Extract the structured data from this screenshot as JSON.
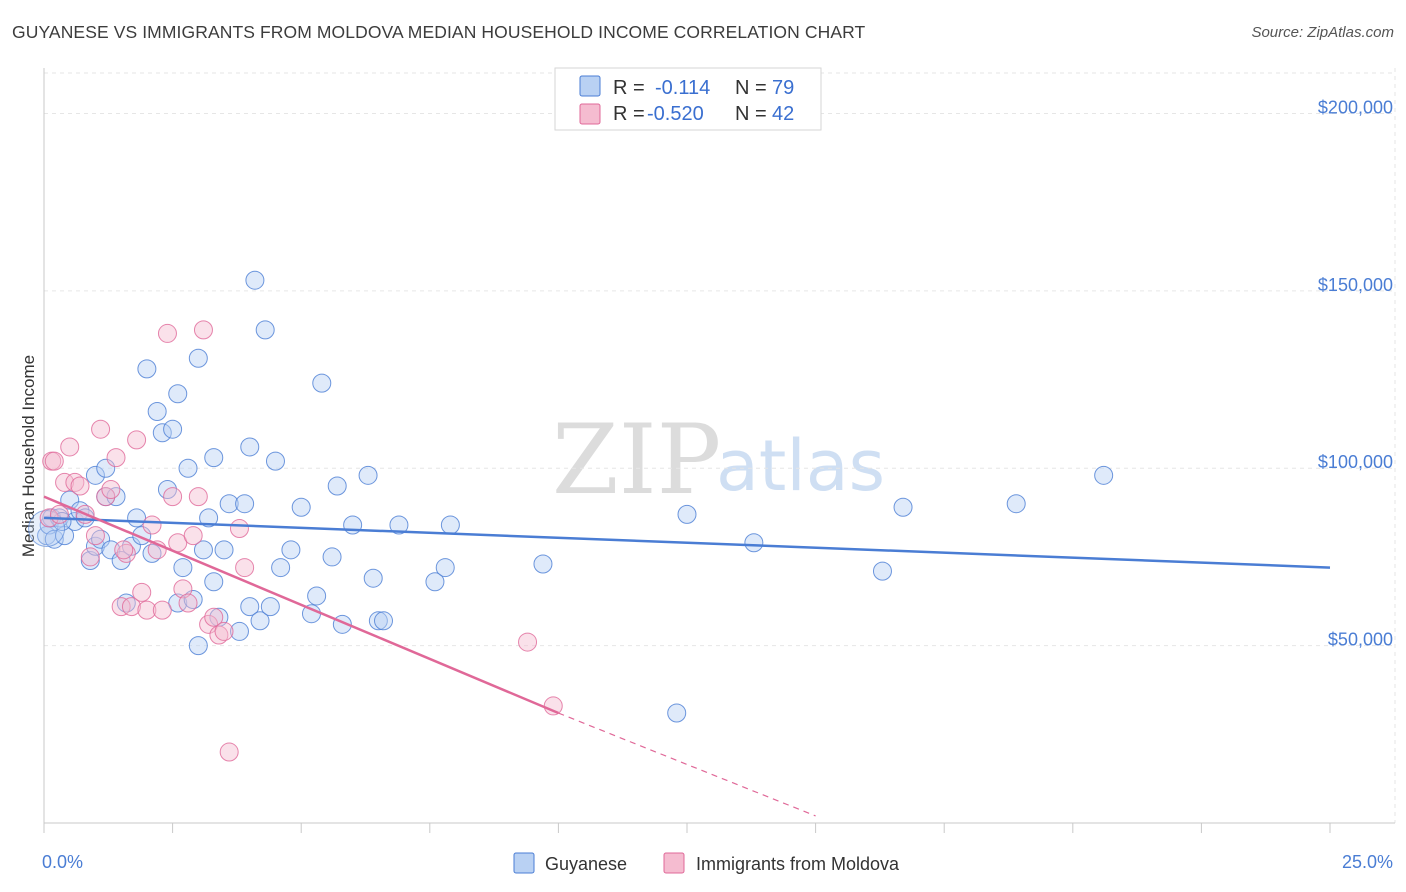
{
  "title": "GUYANESE VS IMMIGRANTS FROM MOLDOVA MEDIAN HOUSEHOLD INCOME CORRELATION CHART",
  "source": "Source: ZipAtlas.com",
  "watermark": {
    "zip": "ZIP",
    "atlas": "atlas"
  },
  "colors": {
    "blue": "#4a7dd4",
    "blue_fill": "#b9d1f3",
    "pink": "#e06898",
    "pink_fill": "#f5bcd0"
  },
  "legend": {
    "rows": [
      {
        "r_label": "R =",
        "r_value": "-0.114",
        "n_label": "N =",
        "n_value": "79"
      },
      {
        "r_label": "R =",
        "r_value": "-0.520",
        "n_label": "N =",
        "n_value": "42"
      }
    ]
  },
  "bottom_legend": {
    "series1": "Guyanese",
    "series2": "Immigrants from Moldova"
  },
  "chart_data": {
    "type": "scatter",
    "title": "GUYANESE VS IMMIGRANTS FROM MOLDOVA MEDIAN HOUSEHOLD INCOME CORRELATION CHART",
    "xlabel": "",
    "ylabel": "Median Household Income",
    "xlim": [
      0,
      25
    ],
    "ylim": [
      0,
      210000
    ],
    "x_tick_labels": [
      "0.0%",
      "25.0%"
    ],
    "y_ticks": [
      {
        "value": 50000,
        "label": "$50,000"
      },
      {
        "value": 100000,
        "label": "$100,000"
      },
      {
        "value": 150000,
        "label": "$150,000"
      },
      {
        "value": 200000,
        "label": "$200,000"
      }
    ],
    "series": [
      {
        "name": "Guyanese",
        "r": -0.114,
        "n": 79,
        "trend": {
          "x0": 0,
          "y0": 86000,
          "x1": 25,
          "y1": 72000
        },
        "points": [
          [
            0.05,
            81000
          ],
          [
            0.1,
            84000
          ],
          [
            0.15,
            86000
          ],
          [
            0.2,
            80000
          ],
          [
            0.3,
            86000
          ],
          [
            0.4,
            81000
          ],
          [
            0.5,
            91000
          ],
          [
            0.6,
            85000
          ],
          [
            0.7,
            88000
          ],
          [
            0.8,
            86000
          ],
          [
            0.9,
            74000
          ],
          [
            1.0,
            78000
          ],
          [
            1.0,
            98000
          ],
          [
            1.1,
            80000
          ],
          [
            1.2,
            92000
          ],
          [
            1.2,
            100000
          ],
          [
            1.3,
            77000
          ],
          [
            1.4,
            92000
          ],
          [
            1.5,
            74000
          ],
          [
            1.6,
            62000
          ],
          [
            1.7,
            78000
          ],
          [
            1.8,
            86000
          ],
          [
            1.9,
            81000
          ],
          [
            2.0,
            128000
          ],
          [
            2.1,
            76000
          ],
          [
            2.2,
            116000
          ],
          [
            2.3,
            110000
          ],
          [
            2.4,
            94000
          ],
          [
            2.5,
            111000
          ],
          [
            2.6,
            121000
          ],
          [
            2.6,
            62000
          ],
          [
            2.7,
            72000
          ],
          [
            2.8,
            100000
          ],
          [
            2.9,
            63000
          ],
          [
            3.0,
            50000
          ],
          [
            3.0,
            131000
          ],
          [
            3.1,
            77000
          ],
          [
            3.2,
            86000
          ],
          [
            3.3,
            103000
          ],
          [
            3.3,
            68000
          ],
          [
            3.4,
            58000
          ],
          [
            3.5,
            77000
          ],
          [
            3.6,
            90000
          ],
          [
            3.8,
            54000
          ],
          [
            3.9,
            90000
          ],
          [
            4.0,
            61000
          ],
          [
            4.0,
            106000
          ],
          [
            4.1,
            153000
          ],
          [
            4.2,
            57000
          ],
          [
            4.3,
            139000
          ],
          [
            4.4,
            61000
          ],
          [
            4.5,
            102000
          ],
          [
            4.6,
            72000
          ],
          [
            4.8,
            77000
          ],
          [
            5.0,
            89000
          ],
          [
            5.2,
            59000
          ],
          [
            5.3,
            64000
          ],
          [
            5.4,
            124000
          ],
          [
            5.6,
            75000
          ],
          [
            5.7,
            95000
          ],
          [
            5.8,
            56000
          ],
          [
            6.0,
            84000
          ],
          [
            6.3,
            98000
          ],
          [
            6.4,
            69000
          ],
          [
            6.5,
            57000
          ],
          [
            6.6,
            57000
          ],
          [
            6.9,
            84000
          ],
          [
            7.6,
            68000
          ],
          [
            7.8,
            72000
          ],
          [
            7.9,
            84000
          ],
          [
            9.7,
            73000
          ],
          [
            12.3,
            31000
          ],
          [
            12.5,
            87000
          ],
          [
            13.8,
            79000
          ],
          [
            16.3,
            71000
          ],
          [
            16.7,
            89000
          ],
          [
            18.9,
            90000
          ],
          [
            20.6,
            98000
          ],
          [
            0.35,
            85000
          ]
        ]
      },
      {
        "name": "Immigrants from Moldova",
        "r": -0.52,
        "n": 42,
        "trend": {
          "x0": 0,
          "y0": 92000,
          "x1": 10,
          "y1": 31000
        },
        "trend_dashed": {
          "x0": 10,
          "y0": 31000,
          "x1": 15,
          "y1": 2000
        },
        "points": [
          [
            0.1,
            86000
          ],
          [
            0.15,
            102000
          ],
          [
            0.2,
            102000
          ],
          [
            0.3,
            87000
          ],
          [
            0.4,
            96000
          ],
          [
            0.5,
            106000
          ],
          [
            0.6,
            96000
          ],
          [
            0.7,
            95000
          ],
          [
            0.8,
            87000
          ],
          [
            0.9,
            75000
          ],
          [
            1.0,
            81000
          ],
          [
            1.1,
            111000
          ],
          [
            1.2,
            92000
          ],
          [
            1.3,
            94000
          ],
          [
            1.4,
            103000
          ],
          [
            1.5,
            61000
          ],
          [
            1.6,
            76000
          ],
          [
            1.7,
            61000
          ],
          [
            1.8,
            108000
          ],
          [
            1.9,
            65000
          ],
          [
            2.0,
            60000
          ],
          [
            2.1,
            84000
          ],
          [
            2.2,
            77000
          ],
          [
            2.3,
            60000
          ],
          [
            2.4,
            138000
          ],
          [
            2.5,
            92000
          ],
          [
            2.6,
            79000
          ],
          [
            2.7,
            66000
          ],
          [
            2.8,
            62000
          ],
          [
            2.9,
            81000
          ],
          [
            3.0,
            92000
          ],
          [
            3.1,
            139000
          ],
          [
            3.2,
            56000
          ],
          [
            3.3,
            58000
          ],
          [
            3.4,
            53000
          ],
          [
            3.5,
            54000
          ],
          [
            3.6,
            20000
          ],
          [
            3.8,
            83000
          ],
          [
            3.9,
            72000
          ],
          [
            9.4,
            51000
          ],
          [
            9.9,
            33000
          ],
          [
            1.55,
            77000
          ]
        ]
      }
    ]
  }
}
